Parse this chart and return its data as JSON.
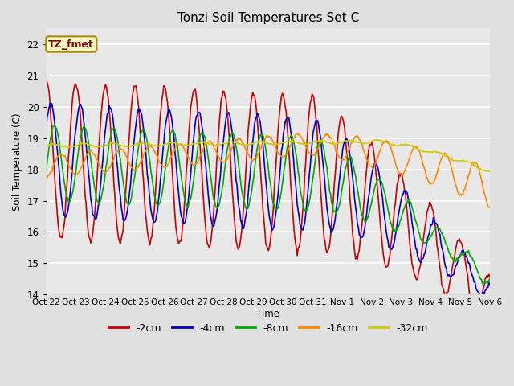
{
  "title": "Tonzi Soil Temperatures Set C",
  "xlabel": "Time",
  "ylabel": "Soil Temperature (C)",
  "ylim": [
    14.0,
    22.5
  ],
  "yticks": [
    14.0,
    15.0,
    16.0,
    17.0,
    18.0,
    19.0,
    20.0,
    21.0,
    22.0
  ],
  "xtick_labels": [
    "Oct 22",
    "Oct 23",
    "Oct 24",
    "Oct 25",
    "Oct 26",
    "Oct 27",
    "Oct 28",
    "Oct 29",
    "Oct 30",
    "Oct 31",
    "Nov 1",
    "Nov 2",
    "Nov 3",
    "Nov 4",
    "Nov 5",
    "Nov 6"
  ],
  "series_labels": [
    "-2cm",
    "-4cm",
    "-8cm",
    "-16cm",
    "-32cm"
  ],
  "series_colors": [
    "#cc0000",
    "#0000cc",
    "#00aa00",
    "#ff8800",
    "#cccc00"
  ],
  "line_widths": [
    1.2,
    1.2,
    1.2,
    1.2,
    1.2
  ],
  "bg_color": "#e0e0e0",
  "plot_bg_color": "#e8e8e8",
  "annotation_text": "TZ_fmet",
  "annotation_bg": "#ffffcc",
  "annotation_border": "#aa8800",
  "annotation_text_color": "#880000",
  "n_points": 480,
  "legend_ncol": 5,
  "figsize": [
    6.4,
    4.8
  ],
  "dpi": 100
}
